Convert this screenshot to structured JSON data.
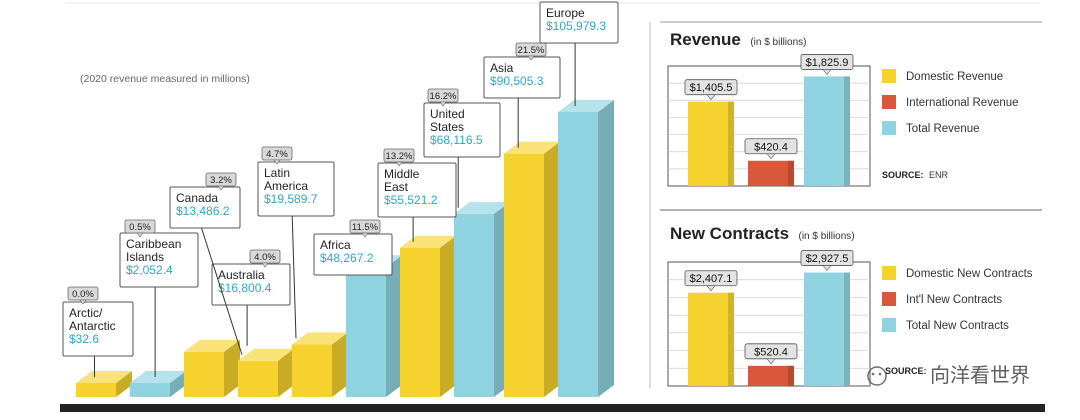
{
  "chart_data": [
    {
      "type": "bar",
      "subtitle": "(2020 revenue measured in millions)",
      "categories": [
        "Arctic/Antarctic",
        "Caribbean Islands",
        "Australia",
        "Canada",
        "Latin America",
        "Africa",
        "Middle East",
        "United States",
        "Asia",
        "Europe"
      ],
      "series": [
        {
          "values": [
            32.6,
            2052.4,
            16800.4,
            13486.2,
            19589.7,
            48267.2,
            55521.2,
            68116.5,
            90505.3,
            105979.3
          ]
        }
      ],
      "colors": [
        "#f5d22e",
        "#8fd3e0",
        "#f5d22e",
        "#f5d22e",
        "#f5d22e",
        "#8fd3e0",
        "#f5d22e",
        "#8fd3e0",
        "#f5d22e",
        "#8fd3e0"
      ],
      "labels": [
        {
          "name_lines": [
            "Arctic/",
            "Antarctic"
          ],
          "value": "$32.6",
          "pct": "0.0%"
        },
        {
          "name_lines": [
            "Caribbean",
            "Islands"
          ],
          "value": "$2,052.4",
          "pct": "0.5%"
        },
        {
          "name_lines": [
            "Australia"
          ],
          "value": "$16,800.4",
          "pct": "4.0%"
        },
        {
          "name_lines": [
            "Canada"
          ],
          "value": "$13,486.2",
          "pct": "3.2%"
        },
        {
          "name_lines": [
            "Latin",
            "America"
          ],
          "value": "$19,589.7",
          "pct": "4.7%"
        },
        {
          "name_lines": [
            "Africa"
          ],
          "value": "$48,267.2",
          "pct": "11.5%"
        },
        {
          "name_lines": [
            "Middle",
            "East"
          ],
          "value": "$55,521.2",
          "pct": "13.2%"
        },
        {
          "name_lines": [
            "United",
            "States"
          ],
          "value": "$68,116.5",
          "pct": "16.2%"
        },
        {
          "name_lines": [
            "Asia"
          ],
          "value": "$90,505.3",
          "pct": "21.5%"
        },
        {
          "name_lines": [
            "Europe"
          ],
          "value": "$105,979.3",
          "pct": ""
        }
      ]
    },
    {
      "type": "bar",
      "title": "Revenue",
      "title_note": "(in $ billions)",
      "categories": [
        "Domestic Revenue",
        "International Revenue",
        "Total Revenue"
      ],
      "values": [
        1405.5,
        420.4,
        1825.9
      ],
      "value_labels": [
        "$1,405.5",
        "$420.4",
        "$1,825.9"
      ],
      "colors": [
        "#f5d22e",
        "#d9573a",
        "#8fd3e0"
      ],
      "source_label": "SOURCE:",
      "source_value": "ENR",
      "ylim": [
        0,
        2000
      ]
    },
    {
      "type": "bar",
      "title": "New Contracts",
      "title_note": "(in $ billions)",
      "categories": [
        "Domestic New Contracts",
        "Int'l New Contracts",
        "Total New Contracts"
      ],
      "values": [
        2407.1,
        520.4,
        2927.5
      ],
      "value_labels": [
        "$2,407.1",
        "$520.4",
        "$2,927.5"
      ],
      "colors": [
        "#f5d22e",
        "#d9573a",
        "#8fd3e0"
      ],
      "source_label": "SOURCE:",
      "ylim": [
        0,
        3200
      ]
    }
  ],
  "watermark": "向洋看世界"
}
